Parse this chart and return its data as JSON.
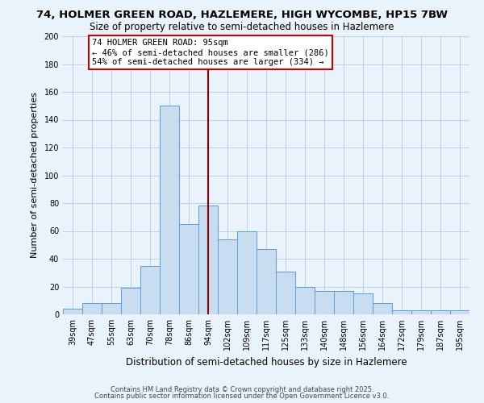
{
  "title1": "74, HOLMER GREEN ROAD, HAZLEMERE, HIGH WYCOMBE, HP15 7BW",
  "title2": "Size of property relative to semi-detached houses in Hazlemere",
  "xlabel": "Distribution of semi-detached houses by size in Hazlemere",
  "ylabel": "Number of semi-detached properties",
  "categories": [
    "39sqm",
    "47sqm",
    "55sqm",
    "63sqm",
    "70sqm",
    "78sqm",
    "86sqm",
    "94sqm",
    "102sqm",
    "109sqm",
    "117sqm",
    "125sqm",
    "133sqm",
    "140sqm",
    "148sqm",
    "156sqm",
    "164sqm",
    "172sqm",
    "179sqm",
    "187sqm",
    "195sqm"
  ],
  "values": [
    4,
    8,
    8,
    19,
    35,
    150,
    65,
    78,
    54,
    60,
    47,
    31,
    20,
    17,
    17,
    15,
    8,
    3,
    3,
    3,
    3
  ],
  "bar_color": "#c9ddf0",
  "bar_edge_color": "#5b9bd5",
  "grid_color": "#c0cfe0",
  "bg_color": "#eaf2fb",
  "vline_color": "#8b0000",
  "annotation_title": "74 HOLMER GREEN ROAD: 95sqm",
  "annotation_line1": "← 46% of semi-detached houses are smaller (286)",
  "annotation_line2": "54% of semi-detached houses are larger (334) →",
  "annotation_box_color": "#ffffff",
  "annotation_box_edge": "#cc0000",
  "footer1": "Contains HM Land Registry data © Crown copyright and database right 2025.",
  "footer2": "Contains public sector information licensed under the Open Government Licence v3.0.",
  "ylim": [
    0,
    200
  ],
  "yticks": [
    0,
    20,
    40,
    60,
    80,
    100,
    120,
    140,
    160,
    180,
    200
  ],
  "title1_fontsize": 9.5,
  "title2_fontsize": 8.5,
  "xlabel_fontsize": 8.5,
  "ylabel_fontsize": 8.0,
  "tick_fontsize": 7.0,
  "footer_fontsize": 6.0,
  "ann_fontsize": 7.5
}
